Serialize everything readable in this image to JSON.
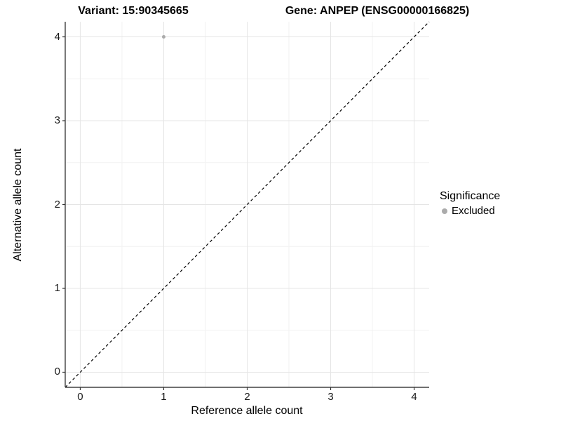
{
  "chart_data": {
    "type": "scatter",
    "titles": {
      "variant": "Variant: 15:90345665",
      "gene": "Gene: ANPEP (ENSG00000166825)"
    },
    "xlabel": "Reference allele count",
    "ylabel": "Alternative allele count",
    "xlim": [
      -0.18,
      4.18
    ],
    "ylim": [
      -0.18,
      4.18
    ],
    "xticks": [
      0,
      1,
      2,
      3,
      4
    ],
    "yticks": [
      0,
      1,
      2,
      3,
      4
    ],
    "grid": {
      "major": [
        0,
        1,
        2,
        3,
        4
      ],
      "minor": [
        0.5,
        1.5,
        2.5,
        3.5
      ],
      "major_color": "#e5e5e5",
      "minor_color": "#f2f2f2"
    },
    "identity_line": {
      "style": "dashed",
      "color": "#000000",
      "from": [
        -0.18,
        -0.18
      ],
      "to": [
        4.18,
        4.18
      ]
    },
    "points": [
      {
        "x": 1,
        "y": 4,
        "series": "Excluded"
      }
    ],
    "legend": {
      "title": "Significance",
      "position": "right",
      "entries": [
        {
          "label": "Excluded",
          "color": "#ababab",
          "marker": "circle"
        }
      ]
    },
    "style": {
      "point_color": "#ababab",
      "point_radius": 2.5,
      "axis_color": "#404040",
      "tick_color": "#333333",
      "background": "#ffffff"
    }
  }
}
